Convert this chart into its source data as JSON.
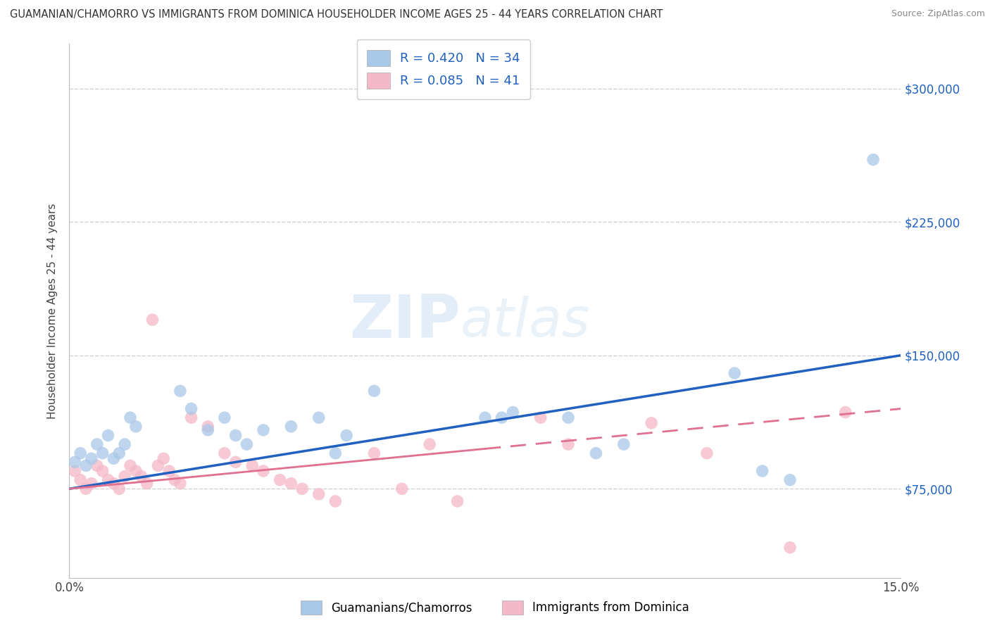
{
  "title": "GUAMANIAN/CHAMORRO VS IMMIGRANTS FROM DOMINICA HOUSEHOLDER INCOME AGES 25 - 44 YEARS CORRELATION CHART",
  "source": "Source: ZipAtlas.com",
  "ylabel": "Householder Income Ages 25 - 44 years",
  "xlim": [
    0.0,
    0.15
  ],
  "ylim": [
    25000,
    325000
  ],
  "ytick_values": [
    75000,
    150000,
    225000,
    300000
  ],
  "background_color": "#ffffff",
  "blue_color": "#a8c8e8",
  "pink_color": "#f4b8c8",
  "blue_line_color": "#2060c0",
  "pink_line_color": "#e07090",
  "pink_line_solid_end": 0.075,
  "R_blue": 0.42,
  "N_blue": 34,
  "R_pink": 0.085,
  "N_pink": 41,
  "legend_label_blue": "Guamanians/Chamorros",
  "legend_label_pink": "Immigrants from Dominica",
  "blue_x": [
    0.001,
    0.002,
    0.003,
    0.004,
    0.005,
    0.006,
    0.007,
    0.008,
    0.009,
    0.01,
    0.011,
    0.012,
    0.02,
    0.022,
    0.025,
    0.028,
    0.03,
    0.032,
    0.035,
    0.04,
    0.045,
    0.048,
    0.05,
    0.055,
    0.075,
    0.078,
    0.08,
    0.09,
    0.095,
    0.1,
    0.12,
    0.125,
    0.13,
    0.145
  ],
  "blue_y": [
    90000,
    95000,
    88000,
    92000,
    100000,
    95000,
    105000,
    92000,
    95000,
    100000,
    115000,
    110000,
    130000,
    120000,
    108000,
    115000,
    105000,
    100000,
    108000,
    110000,
    115000,
    95000,
    105000,
    130000,
    115000,
    115000,
    118000,
    115000,
    95000,
    100000,
    140000,
    85000,
    80000,
    260000
  ],
  "pink_x": [
    0.001,
    0.002,
    0.003,
    0.004,
    0.005,
    0.006,
    0.007,
    0.008,
    0.009,
    0.01,
    0.011,
    0.012,
    0.013,
    0.014,
    0.015,
    0.016,
    0.017,
    0.018,
    0.019,
    0.02,
    0.022,
    0.025,
    0.028,
    0.03,
    0.033,
    0.035,
    0.038,
    0.04,
    0.042,
    0.045,
    0.048,
    0.055,
    0.06,
    0.065,
    0.07,
    0.085,
    0.09,
    0.105,
    0.115,
    0.13,
    0.14
  ],
  "pink_y": [
    85000,
    80000,
    75000,
    78000,
    88000,
    85000,
    80000,
    78000,
    75000,
    82000,
    88000,
    85000,
    82000,
    78000,
    170000,
    88000,
    92000,
    85000,
    80000,
    78000,
    115000,
    110000,
    95000,
    90000,
    88000,
    85000,
    80000,
    78000,
    75000,
    72000,
    68000,
    95000,
    75000,
    100000,
    68000,
    115000,
    100000,
    112000,
    95000,
    42000,
    118000
  ]
}
